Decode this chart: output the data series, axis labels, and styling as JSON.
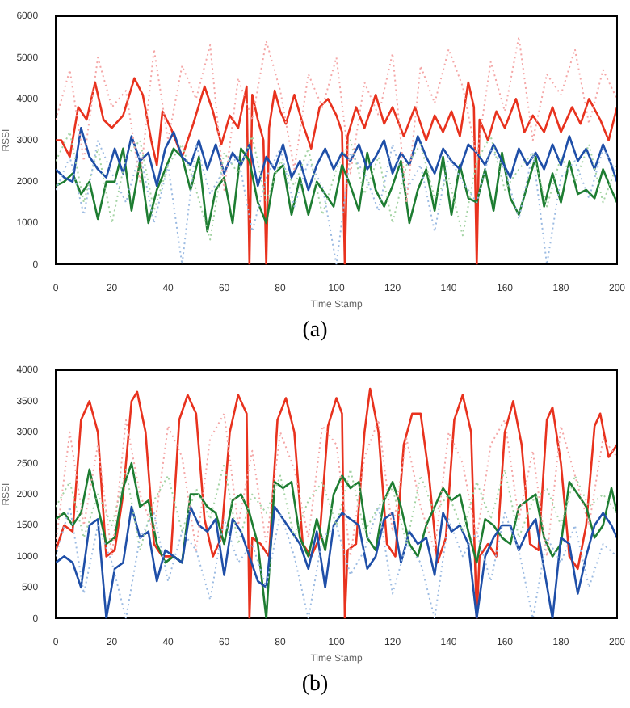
{
  "chart_data": [
    {
      "type": "line",
      "xlabel": "Time Stamp",
      "ylabel": "RSSI",
      "annotations": [
        "(a)"
      ],
      "grid": false,
      "legend": false,
      "xlim": [
        0,
        200
      ],
      "xticks": [
        0,
        20,
        40,
        60,
        80,
        100,
        120,
        140,
        160,
        180,
        200
      ],
      "ylim": [
        0,
        6000
      ],
      "yticks": [
        0,
        1000,
        2000,
        3000,
        4000,
        5000,
        6000
      ],
      "x": [
        0,
        3,
        6,
        9,
        12,
        15,
        18,
        21,
        24,
        27,
        30,
        33,
        36,
        39,
        42,
        45,
        48,
        51,
        54,
        57,
        60,
        63,
        66,
        69,
        72,
        75,
        78,
        81,
        84,
        87,
        90,
        93,
        96,
        99,
        102,
        105,
        108,
        111,
        114,
        117,
        120,
        123,
        126,
        129,
        132,
        135,
        138,
        141,
        144,
        147,
        150,
        153,
        156,
        159,
        162,
        165,
        168,
        171,
        174,
        177,
        180,
        183,
        186,
        189,
        192,
        195,
        198,
        200
      ],
      "series": [
        {
          "color": "#f4a6a6",
          "line_style": "dotted",
          "x": [
            0,
            5,
            10,
            15,
            20,
            25,
            30,
            35,
            40,
            45,
            50,
            55,
            60,
            65,
            70,
            75,
            80,
            85,
            90,
            95,
            100,
            105,
            110,
            115,
            120,
            125,
            130,
            135,
            140,
            145,
            150,
            155,
            160,
            165,
            170,
            175,
            180,
            185,
            190,
            195,
            200
          ],
          "values": [
            3500,
            4700,
            2500,
            5000,
            3800,
            4200,
            2000,
            5200,
            3000,
            4800,
            4000,
            5300,
            1800,
            4500,
            3500,
            5400,
            4200,
            2300,
            4600,
            3800,
            5000,
            2200,
            4400,
            3600,
            5100,
            1500,
            4800,
            3900,
            5200,
            4300,
            2600,
            4900,
            3700,
            5500,
            3000,
            4600,
            4100,
            5200,
            3400,
            4700,
            4000
          ]
        },
        {
          "color": "#9cbbe2",
          "line_style": "dotted",
          "x": [
            0,
            5,
            10,
            15,
            20,
            25,
            30,
            35,
            40,
            45,
            50,
            55,
            60,
            65,
            70,
            75,
            80,
            85,
            90,
            95,
            100,
            105,
            110,
            115,
            120,
            125,
            130,
            135,
            140,
            145,
            150,
            155,
            160,
            165,
            170,
            175,
            180,
            185,
            190,
            195,
            200
          ],
          "values": [
            1800,
            2600,
            1200,
            3000,
            2200,
            1500,
            2700,
            1000,
            2400,
            0,
            2900,
            1700,
            2300,
            2600,
            800,
            2100,
            2800,
            1400,
            2500,
            1900,
            0,
            2700,
            2200,
            1300,
            2900,
            1800,
            2400,
            800,
            2600,
            2000,
            1500,
            2800,
            2300,
            1100,
            2700,
            0,
            2100,
            2500,
            1600,
            2800,
            2200
          ]
        },
        {
          "color": "#a3d3a3",
          "line_style": "dotted",
          "x": [
            0,
            5,
            10,
            15,
            20,
            25,
            30,
            35,
            40,
            45,
            50,
            55,
            60,
            65,
            70,
            75,
            80,
            85,
            90,
            95,
            100,
            105,
            110,
            115,
            120,
            125,
            130,
            135,
            140,
            145,
            150,
            155,
            160,
            165,
            170,
            175,
            180,
            185,
            190,
            195,
            200
          ],
          "values": [
            2500,
            3200,
            1500,
            2800,
            1000,
            2600,
            3000,
            1300,
            2400,
            2900,
            1800,
            600,
            2700,
            2200,
            3100,
            1500,
            2500,
            1900,
            2800,
            1200,
            2300,
            3000,
            1700,
            2600,
            1000,
            2400,
            2900,
            1600,
            2100,
            700,
            2500,
            3100,
            1800,
            2300,
            2700,
            1400,
            2600,
            2000,
            2900,
            1500,
            2400
          ]
        },
        {
          "color": "#1f4fa8",
          "line_style": "solid",
          "values": [
            2300,
            2100,
            2000,
            3300,
            2600,
            2300,
            2100,
            2800,
            2200,
            3100,
            2500,
            2700,
            1900,
            2800,
            3200,
            2600,
            2400,
            3000,
            2300,
            2900,
            2200,
            2700,
            2400,
            2900,
            1900,
            2600,
            2300,
            2900,
            2100,
            2500,
            1800,
            2400,
            2800,
            2300,
            2700,
            2500,
            2900,
            2300,
            2600,
            3000,
            2200,
            2700,
            2400,
            3100,
            2600,
            2200,
            2800,
            2500,
            2300,
            2900,
            2700,
            2400,
            2900,
            2500,
            2100,
            2800,
            2400,
            2700,
            2300,
            2900,
            2400,
            3100,
            2500,
            2800,
            2300,
            2900,
            2400,
            2000
          ]
        },
        {
          "color": "#1e7d32",
          "line_style": "solid",
          "values": [
            1900,
            2000,
            2200,
            1700,
            2000,
            1100,
            2000,
            2000,
            2800,
            1300,
            2500,
            1000,
            1800,
            2300,
            2800,
            2600,
            1800,
            2600,
            800,
            1800,
            2100,
            1000,
            2800,
            2500,
            1500,
            1000,
            2200,
            2400,
            1200,
            2100,
            1200,
            2000,
            1700,
            1400,
            2400,
            1900,
            1300,
            2700,
            1800,
            1400,
            1900,
            2500,
            1000,
            1800,
            2300,
            1300,
            2600,
            1200,
            2400,
            1600,
            1500,
            2300,
            1300,
            2700,
            1600,
            1200,
            1900,
            2600,
            1400,
            2200,
            1500,
            2500,
            1700,
            1800,
            1600,
            2300,
            1800,
            1500
          ]
        },
        {
          "color": "#e8321e",
          "line_style": "solid",
          "x": [
            0,
            2,
            5,
            8,
            11,
            14,
            17,
            20,
            24,
            28,
            31,
            34,
            36,
            38,
            41,
            45,
            49,
            53,
            56,
            59,
            62,
            65,
            68,
            69,
            70,
            72,
            74,
            75,
            76,
            78,
            80,
            82,
            85,
            88,
            91,
            94,
            97,
            100,
            102,
            103,
            104,
            107,
            110,
            114,
            117,
            120,
            124,
            128,
            132,
            135,
            138,
            141,
            144,
            147,
            149,
            150,
            151,
            154,
            157,
            160,
            164,
            167,
            170,
            174,
            177,
            180,
            184,
            187,
            190,
            194,
            197,
            200
          ],
          "values": [
            3000,
            3000,
            2600,
            3800,
            3500,
            4400,
            3500,
            3300,
            3600,
            4500,
            4100,
            3000,
            2400,
            3700,
            3300,
            2600,
            3400,
            4300,
            3700,
            2900,
            3600,
            3300,
            4300,
            0,
            4100,
            3500,
            3000,
            0,
            3300,
            4200,
            3700,
            3400,
            4100,
            3400,
            2800,
            3800,
            4000,
            3600,
            3200,
            0,
            3100,
            3800,
            3300,
            4100,
            3400,
            3800,
            3100,
            3800,
            3000,
            3600,
            3200,
            3700,
            3100,
            4400,
            3800,
            0,
            3500,
            3000,
            3700,
            3300,
            4000,
            3200,
            3600,
            3200,
            3800,
            3200,
            3800,
            3400,
            4000,
            3500,
            3000,
            3800
          ]
        }
      ]
    },
    {
      "type": "line",
      "xlabel": "Time Stamp",
      "ylabel": "RSSI",
      "annotations": [
        "(b)"
      ],
      "grid": false,
      "legend": false,
      "xlim": [
        0,
        200
      ],
      "xticks": [
        0,
        20,
        40,
        60,
        80,
        100,
        120,
        140,
        160,
        180,
        200
      ],
      "ylim": [
        0,
        4000
      ],
      "yticks": [
        0,
        500,
        1000,
        1500,
        2000,
        2500,
        3000,
        3500,
        4000
      ],
      "x": [
        0,
        3,
        6,
        9,
        12,
        15,
        18,
        21,
        24,
        27,
        30,
        33,
        36,
        39,
        42,
        45,
        48,
        51,
        54,
        57,
        60,
        63,
        66,
        69,
        72,
        75,
        78,
        81,
        84,
        87,
        90,
        93,
        96,
        99,
        102,
        105,
        108,
        111,
        114,
        117,
        120,
        123,
        126,
        129,
        132,
        135,
        138,
        141,
        144,
        147,
        150,
        153,
        156,
        159,
        162,
        165,
        168,
        171,
        174,
        177,
        180,
        183,
        186,
        189,
        192,
        195,
        198,
        200
      ],
      "series": [
        {
          "color": "#f4a6a6",
          "line_style": "dotted",
          "x": [
            0,
            5,
            10,
            15,
            20,
            25,
            30,
            35,
            40,
            45,
            50,
            55,
            60,
            65,
            70,
            75,
            80,
            85,
            90,
            95,
            100,
            105,
            110,
            115,
            120,
            125,
            130,
            135,
            140,
            145,
            150,
            155,
            160,
            165,
            170,
            175,
            180,
            185,
            190,
            195,
            200
          ],
          "values": [
            1200,
            3000,
            1500,
            2800,
            1000,
            3200,
            2000,
            1400,
            3100,
            2600,
            1100,
            2900,
            3300,
            1500,
            2700,
            1200,
            3000,
            2400,
            1300,
            3100,
            2800,
            1000,
            2600,
            3200,
            1400,
            2900,
            1800,
            1100,
            3000,
            2500,
            1300,
            2800,
            3200,
            1600,
            2700,
            1000,
            3100,
            2300,
            1500,
            2900,
            2600
          ]
        },
        {
          "color": "#9cbbe2",
          "line_style": "dotted",
          "x": [
            0,
            5,
            10,
            15,
            20,
            25,
            30,
            35,
            40,
            45,
            50,
            55,
            60,
            65,
            70,
            75,
            80,
            85,
            90,
            95,
            100,
            105,
            110,
            115,
            120,
            125,
            130,
            135,
            140,
            145,
            150,
            155,
            160,
            165,
            170,
            175,
            180,
            185,
            190,
            195,
            200
          ],
          "values": [
            1000,
            1800,
            400,
            1500,
            900,
            0,
            1300,
            1700,
            600,
            1400,
            1100,
            300,
            1600,
            900,
            1200,
            500,
            1700,
            1000,
            0,
            1300,
            1500,
            700,
            1100,
            1800,
            400,
            1200,
            900,
            0,
            1600,
            1000,
            1400,
            600,
            1700,
            1100,
            0,
            1300,
            900,
            1500,
            500,
            1200,
            1000
          ]
        },
        {
          "color": "#a3d3a3",
          "line_style": "dotted",
          "x": [
            0,
            5,
            10,
            15,
            20,
            25,
            30,
            35,
            40,
            45,
            50,
            55,
            60,
            65,
            70,
            75,
            80,
            85,
            90,
            95,
            100,
            105,
            110,
            115,
            120,
            125,
            130,
            135,
            140,
            145,
            150,
            155,
            160,
            165,
            170,
            175,
            180,
            185,
            190,
            195,
            200
          ],
          "values": [
            1800,
            2200,
            1300,
            2000,
            1500,
            2400,
            1100,
            1900,
            2300,
            1400,
            2100,
            1600,
            2500,
            1200,
            2000,
            1700,
            2300,
            1300,
            1900,
            2200,
            1500,
            2400,
            1400,
            1800,
            2100,
            1200,
            2300,
            1700,
            2000,
            1400,
            2200,
            1600,
            2400,
            1300,
            1900,
            2100,
            1500,
            2300,
            1800,
            2000,
            1700
          ]
        },
        {
          "color": "#1f4fa8",
          "line_style": "solid",
          "values": [
            900,
            1000,
            900,
            500,
            1500,
            1600,
            0,
            800,
            900,
            1800,
            1300,
            1400,
            600,
            1100,
            1000,
            900,
            1800,
            1500,
            1400,
            1600,
            700,
            1600,
            1400,
            1000,
            600,
            500,
            1800,
            1600,
            1400,
            1200,
            800,
            1400,
            500,
            1500,
            1700,
            1600,
            1500,
            800,
            1000,
            1600,
            1700,
            900,
            1400,
            1200,
            1300,
            700,
            1700,
            1400,
            1500,
            1200,
            0,
            1000,
            1300,
            1500,
            1500,
            1100,
            1400,
            1600,
            800,
            0,
            1300,
            1200,
            400,
            1000,
            1500,
            1700,
            1500,
            1300
          ]
        },
        {
          "color": "#1e7d32",
          "line_style": "solid",
          "values": [
            1600,
            1700,
            1500,
            1700,
            2400,
            1800,
            1200,
            1300,
            2100,
            2500,
            1800,
            1900,
            1200,
            900,
            1000,
            900,
            2000,
            2000,
            1800,
            1700,
            1200,
            1900,
            2000,
            1700,
            1200,
            0,
            2200,
            2100,
            2200,
            1300,
            1000,
            1600,
            1100,
            2000,
            2300,
            2100,
            2200,
            1300,
            1100,
            1900,
            2200,
            1800,
            1200,
            1000,
            1500,
            1800,
            2100,
            1900,
            2000,
            1400,
            900,
            1600,
            1500,
            1300,
            1200,
            1800,
            1900,
            2000,
            1300,
            1000,
            1200,
            2200,
            2000,
            1800,
            1300,
            1500,
            2100,
            1700
          ]
        },
        {
          "color": "#e8321e",
          "line_style": "solid",
          "x": [
            0,
            3,
            6,
            9,
            12,
            15,
            18,
            21,
            24,
            27,
            29,
            32,
            35,
            38,
            41,
            44,
            47,
            50,
            53,
            56,
            59,
            62,
            65,
            68,
            69,
            70,
            73,
            76,
            79,
            82,
            85,
            88,
            91,
            94,
            97,
            100,
            102,
            103,
            104,
            107,
            110,
            112,
            115,
            118,
            121,
            124,
            127,
            130,
            133,
            136,
            139,
            142,
            145,
            148,
            150,
            151,
            154,
            157,
            160,
            163,
            166,
            169,
            172,
            175,
            177,
            180,
            183,
            186,
            189,
            192,
            194,
            197,
            200
          ],
          "values": [
            1100,
            1500,
            1400,
            3200,
            3500,
            3000,
            1000,
            1100,
            2000,
            3500,
            3650,
            3000,
            1200,
            1000,
            1000,
            3200,
            3600,
            3300,
            1600,
            1000,
            1300,
            3000,
            3600,
            3300,
            0,
            1300,
            1200,
            1000,
            3200,
            3550,
            3000,
            1200,
            1000,
            1300,
            3100,
            3550,
            3300,
            0,
            1100,
            1200,
            3000,
            3700,
            3000,
            1200,
            1000,
            2800,
            3300,
            3300,
            2300,
            900,
            1300,
            3200,
            3600,
            3000,
            0,
            1000,
            1200,
            1000,
            3000,
            3500,
            2800,
            1200,
            1100,
            3200,
            3400,
            2500,
            1000,
            800,
            1500,
            3100,
            3300,
            2600,
            2800
          ]
        }
      ]
    }
  ]
}
